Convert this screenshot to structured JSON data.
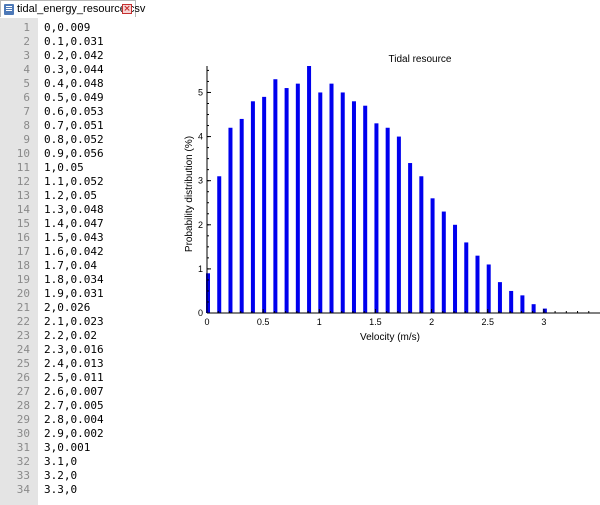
{
  "tab": {
    "title": "tidal_energy_resource.csv",
    "file_icon": "csv-file-icon",
    "close_icon": "close-icon",
    "close_color": "#c62f2f"
  },
  "editor": {
    "lines": [
      {
        "n": "1",
        "text": "0,0.009"
      },
      {
        "n": "2",
        "text": "0.1,0.031"
      },
      {
        "n": "3",
        "text": "0.2,0.042"
      },
      {
        "n": "4",
        "text": "0.3,0.044"
      },
      {
        "n": "5",
        "text": "0.4,0.048"
      },
      {
        "n": "6",
        "text": "0.5,0.049"
      },
      {
        "n": "7",
        "text": "0.6,0.053"
      },
      {
        "n": "8",
        "text": "0.7,0.051"
      },
      {
        "n": "9",
        "text": "0.8,0.052"
      },
      {
        "n": "10",
        "text": "0.9,0.056"
      },
      {
        "n": "11",
        "text": "1,0.05"
      },
      {
        "n": "12",
        "text": "1.1,0.052"
      },
      {
        "n": "13",
        "text": "1.2,0.05"
      },
      {
        "n": "14",
        "text": "1.3,0.048"
      },
      {
        "n": "15",
        "text": "1.4,0.047"
      },
      {
        "n": "16",
        "text": "1.5,0.043"
      },
      {
        "n": "17",
        "text": "1.6,0.042"
      },
      {
        "n": "18",
        "text": "1.7,0.04"
      },
      {
        "n": "19",
        "text": "1.8,0.034"
      },
      {
        "n": "20",
        "text": "1.9,0.031"
      },
      {
        "n": "21",
        "text": "2,0.026"
      },
      {
        "n": "22",
        "text": "2.1,0.023"
      },
      {
        "n": "23",
        "text": "2.2,0.02"
      },
      {
        "n": "24",
        "text": "2.3,0.016"
      },
      {
        "n": "25",
        "text": "2.4,0.013"
      },
      {
        "n": "26",
        "text": "2.5,0.011"
      },
      {
        "n": "27",
        "text": "2.6,0.007"
      },
      {
        "n": "28",
        "text": "2.7,0.005"
      },
      {
        "n": "29",
        "text": "2.8,0.004"
      },
      {
        "n": "30",
        "text": "2.9,0.002"
      },
      {
        "n": "31",
        "text": "3,0.001"
      },
      {
        "n": "32",
        "text": "3.1,0"
      },
      {
        "n": "33",
        "text": "3.2,0"
      },
      {
        "n": "34",
        "text": "3.3,0"
      }
    ]
  },
  "chart_data": {
    "type": "bar",
    "title": "Tidal resource",
    "xlabel": "Velocity (m/s)",
    "ylabel": "Probability distribution (%)",
    "x": [
      0,
      0.1,
      0.2,
      0.3,
      0.4,
      0.5,
      0.6,
      0.7,
      0.8,
      0.9,
      1,
      1.1,
      1.2,
      1.3,
      1.4,
      1.5,
      1.6,
      1.7,
      1.8,
      1.9,
      2,
      2.1,
      2.2,
      2.3,
      2.4,
      2.5,
      2.6,
      2.7,
      2.8,
      2.9,
      3,
      3.1,
      3.2,
      3.3
    ],
    "values": [
      0.9,
      3.1,
      4.2,
      4.4,
      4.8,
      4.9,
      5.3,
      5.1,
      5.2,
      5.6,
      5.0,
      5.2,
      5.0,
      4.8,
      4.7,
      4.3,
      4.2,
      4.0,
      3.4,
      3.1,
      2.6,
      2.3,
      2.0,
      1.6,
      1.3,
      1.1,
      0.7,
      0.5,
      0.4,
      0.2,
      0.1,
      0,
      0,
      0
    ],
    "xlim": [
      0,
      3.3
    ],
    "ylim": [
      0,
      5.6
    ],
    "xticks": [
      "0",
      "0.5",
      "1",
      "1.5",
      "2",
      "2.5",
      "3"
    ],
    "xtick_values": [
      0,
      0.5,
      1,
      1.5,
      2,
      2.5,
      3
    ],
    "yticks": [
      "0",
      "1",
      "2",
      "3",
      "4",
      "5"
    ],
    "ytick_values": [
      0,
      1,
      2,
      3,
      4,
      5
    ],
    "bar_color": "#0000ee",
    "grid": false,
    "legend": "none"
  }
}
